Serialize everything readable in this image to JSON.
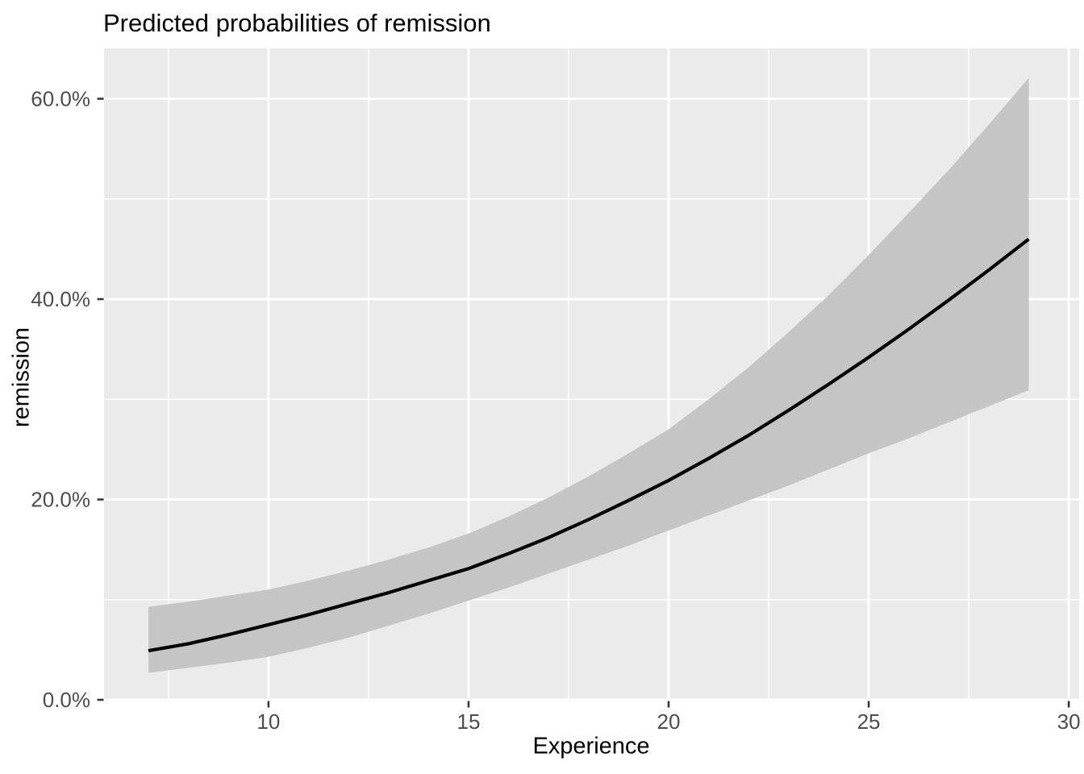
{
  "title": "Predicted probabilities of remission",
  "x_axis": {
    "label": "Experience",
    "range": [
      5.89,
      30.26
    ],
    "major_ticks": [
      {
        "value": 10,
        "label": "10"
      },
      {
        "value": 15,
        "label": "15"
      },
      {
        "value": 20,
        "label": "20"
      },
      {
        "value": 25,
        "label": "25"
      },
      {
        "value": 30,
        "label": "30"
      }
    ],
    "minor_ticks": [
      7.5,
      12.5,
      17.5,
      22.5,
      27.5
    ]
  },
  "y_axis": {
    "label": "remission",
    "range": [
      -0.08,
      65.03
    ],
    "unit": "percent",
    "major_ticks": [
      {
        "value": 0,
        "label": "0.0%"
      },
      {
        "value": 20,
        "label": "20.0%"
      },
      {
        "value": 40,
        "label": "40.0%"
      },
      {
        "value": 60,
        "label": "60.0%"
      }
    ],
    "minor_ticks": [
      10,
      30,
      50
    ]
  },
  "colors": {
    "panel_background": "#ebebeb",
    "gridline": "#ffffff",
    "ribbon_fill": "#c5c5c5",
    "line": "#000000",
    "tick_mark": "#333333",
    "tick_label": "#4d4d4d",
    "title_text": "#000000"
  },
  "chart_data": {
    "type": "line",
    "title": "Predicted probabilities of remission",
    "xlabel": "Experience",
    "ylabel": "remission",
    "xlim": [
      5.89,
      30.26
    ],
    "ylim_percent": [
      -0.08,
      65.03
    ],
    "grid": "on",
    "legend": "none",
    "ribbon": true,
    "x": [
      7,
      8,
      9,
      10,
      11,
      12,
      13,
      14,
      15,
      16,
      17,
      18,
      19,
      20,
      21,
      22,
      23,
      24,
      25,
      26,
      27,
      28,
      29
    ],
    "series": [
      {
        "name": "predicted_probability_percent",
        "values": [
          4.9,
          5.6,
          6.5,
          7.5,
          8.5,
          9.6,
          10.7,
          11.9,
          13.1,
          14.6,
          16.2,
          18.0,
          19.9,
          21.9,
          24.1,
          26.4,
          28.9,
          31.5,
          34.2,
          37.0,
          39.9,
          42.9,
          46.0
        ]
      },
      {
        "name": "lower_ci_percent",
        "values": [
          2.7,
          3.2,
          3.7,
          4.3,
          5.2,
          6.2,
          7.4,
          8.6,
          9.9,
          11.2,
          12.6,
          14.0,
          15.4,
          16.9,
          18.4,
          19.9,
          21.4,
          23.0,
          24.6,
          26.1,
          27.7,
          29.3,
          30.9
        ]
      },
      {
        "name": "upper_ci_percent",
        "values": [
          9.3,
          9.8,
          10.4,
          11.0,
          11.9,
          12.9,
          14.0,
          15.2,
          16.6,
          18.3,
          20.2,
          22.3,
          24.6,
          27.0,
          30.0,
          33.2,
          36.7,
          40.4,
          44.4,
          48.6,
          52.9,
          57.4,
          62.1
        ]
      }
    ]
  }
}
